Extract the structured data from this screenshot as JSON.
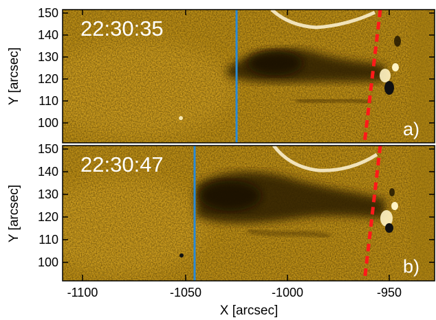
{
  "colors": {
    "background_dark": "#3a2a04",
    "background_mid": "#b8860b",
    "background_light": "#e8b838",
    "cursor_line": "#2a8ad4",
    "limb_dashed": "#ff1a1a"
  },
  "panels": [
    {
      "timestamp": "22:30:35",
      "panel_label": "a)",
      "ylabel": "Y [arcsec]",
      "y_ticks": [
        "150",
        "140",
        "130",
        "120",
        "110",
        "100"
      ],
      "vertical_line_x": -1025
    },
    {
      "timestamp": "22:30:47",
      "panel_label": "b)",
      "ylabel": "Y [arcsec]",
      "y_ticks": [
        "150",
        "140",
        "130",
        "120",
        "110",
        "100"
      ],
      "vertical_line_x": -1045
    }
  ],
  "x_axis": {
    "label": "X [arcsec]",
    "ticks": [
      "-1100",
      "-1050",
      "-1000",
      "-950"
    ],
    "xlim": [
      -1112,
      -930
    ]
  },
  "y_axis": {
    "ylim": [
      91,
      152
    ]
  }
}
